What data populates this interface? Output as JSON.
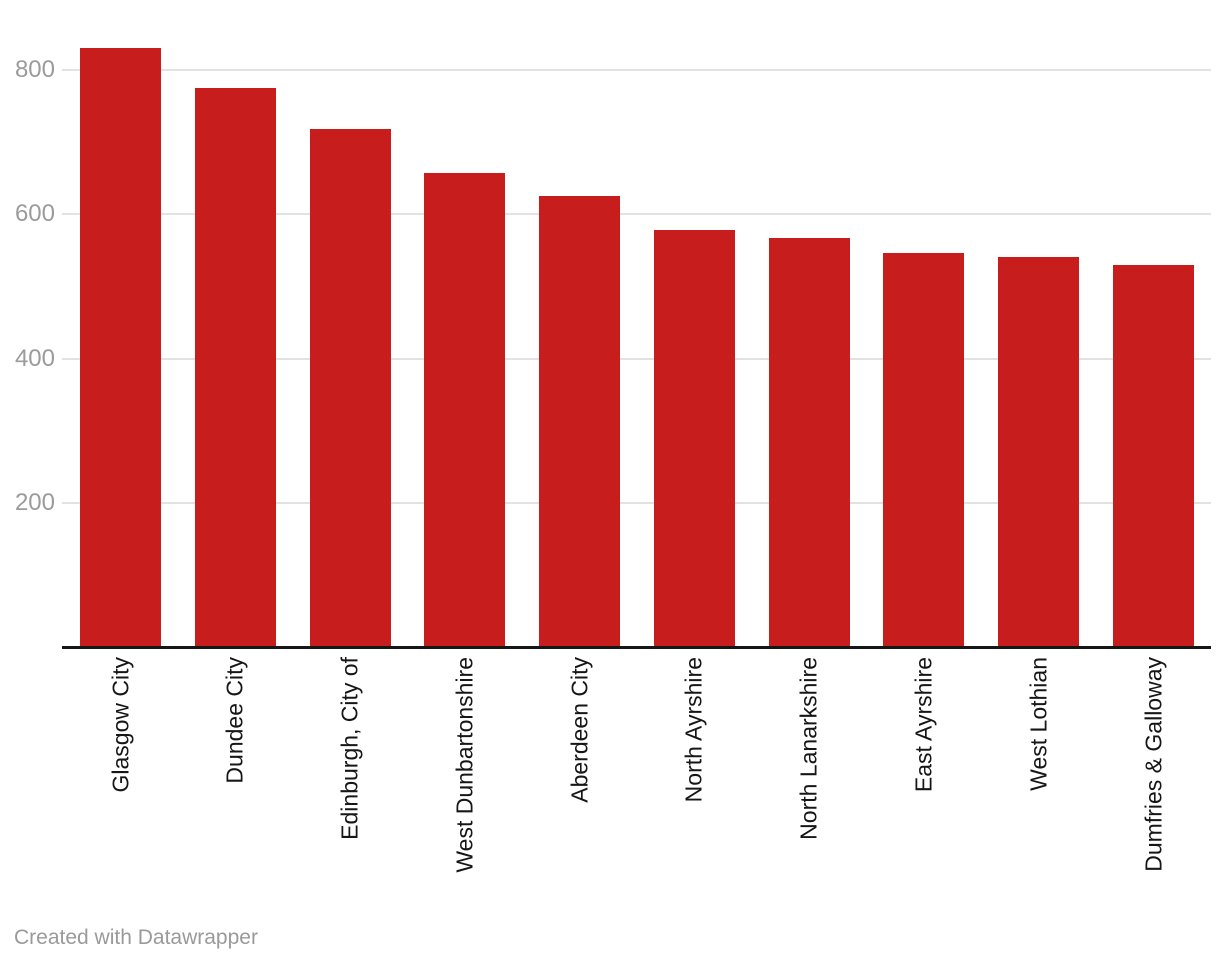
{
  "chart_data": {
    "type": "bar",
    "title": "",
    "xlabel": "",
    "ylabel": "",
    "categories": [
      "Glasgow City",
      "Dundee City",
      "Edinburgh, City of",
      "West Dunbartonshire",
      "Aberdeen City",
      "North Ayrshire",
      "North Lanarkshire",
      "East Ayrshire",
      "West Lothian",
      "Dumfries & Galloway"
    ],
    "values": [
      830,
      775,
      718,
      658,
      626,
      578,
      567,
      546,
      541,
      530
    ],
    "yticks": [
      200,
      400,
      600,
      800
    ],
    "ylim": [
      0,
      900
    ],
    "grid": "horizontal",
    "legend": "none",
    "bar_color": "#c71e1d"
  },
  "colors": {
    "bar": "#c71e1d",
    "gridline": "#e2e2e2",
    "axis_line": "#161616",
    "ytick_label": "#9b9b9b",
    "xtick_label": "#161616",
    "credit": "#9a9a9a"
  },
  "footer": {
    "credit": "Created with Datawrapper"
  }
}
